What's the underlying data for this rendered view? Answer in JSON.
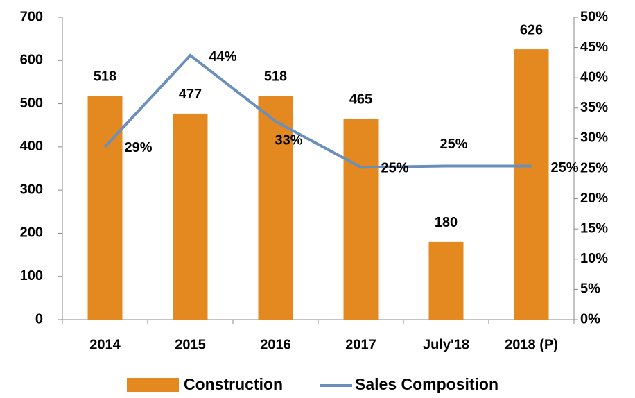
{
  "chart_data": {
    "type": "bar",
    "categories": [
      "2014",
      "2015",
      "2016",
      "2017",
      "July'18",
      "2018 (P)"
    ],
    "series": [
      {
        "name": "Construction",
        "color": "#e3891f",
        "values": [
          518,
          477,
          518,
          465,
          180,
          626
        ]
      },
      {
        "name": "Sales Composition",
        "color": "#6a8fbd",
        "type": "line",
        "axis": "y2",
        "values": [
          28.6,
          43.7,
          32.8,
          25.2,
          25.4,
          25.4
        ],
        "value_labels": [
          "29%",
          "44%",
          "33%",
          "25%",
          "25%",
          "25%"
        ]
      }
    ],
    "ylim": [
      0,
      700
    ],
    "yticks": [
      0,
      100,
      200,
      300,
      400,
      500,
      600,
      700
    ],
    "y2lim": [
      0,
      50
    ],
    "y2ticks": [
      {
        "value": 0,
        "label": "0%"
      },
      {
        "value": 5,
        "label": "5%"
      },
      {
        "value": 10,
        "label": "10%"
      },
      {
        "value": 15,
        "label": "15%"
      },
      {
        "value": 20,
        "label": "20%"
      },
      {
        "value": 25,
        "label": "25%"
      },
      {
        "value": 30,
        "label": "30%"
      },
      {
        "value": 35,
        "label": "35%"
      },
      {
        "value": 40,
        "label": "40%"
      },
      {
        "value": 45,
        "label": "45%"
      },
      {
        "value": 50,
        "label": "50%"
      }
    ],
    "legend": "bottom",
    "grid": false
  }
}
